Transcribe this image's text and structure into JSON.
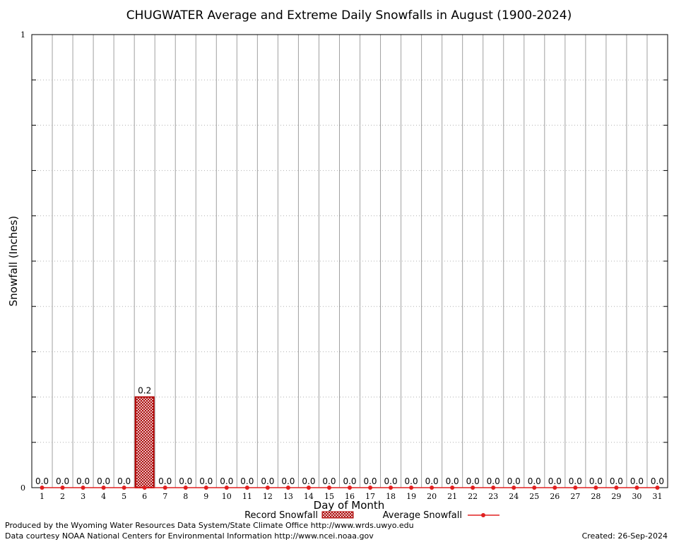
{
  "chart_data": {
    "type": "bar",
    "title": "CHUGWATER Average and Extreme Daily Snowfalls in August (1900-2024)",
    "xlabel": "Day of Month",
    "ylabel": "Snowfall (Inches)",
    "ylim": [
      0,
      1
    ],
    "yticks": [
      "0",
      "1"
    ],
    "grid": true,
    "categories": [
      "1",
      "2",
      "3",
      "4",
      "5",
      "6",
      "7",
      "8",
      "9",
      "10",
      "11",
      "12",
      "13",
      "14",
      "15",
      "16",
      "17",
      "18",
      "19",
      "20",
      "21",
      "22",
      "23",
      "24",
      "25",
      "26",
      "27",
      "28",
      "29",
      "30",
      "31"
    ],
    "series": [
      {
        "name": "Record Snowfall",
        "type": "bar",
        "values": [
          0,
          0,
          0,
          0,
          0,
          0.2,
          0,
          0,
          0,
          0,
          0,
          0,
          0,
          0,
          0,
          0,
          0,
          0,
          0,
          0,
          0,
          0,
          0,
          0,
          0,
          0,
          0,
          0,
          0,
          0,
          0
        ],
        "labels": [
          "0.0",
          "0.0",
          "0.0",
          "0.0",
          "0.0",
          "0.2",
          "0.0",
          "0.0",
          "0.0",
          "0.0",
          "0.0",
          "0.0",
          "0.0",
          "0.0",
          "0.0",
          "0.0",
          "0.0",
          "0.0",
          "0.0",
          "0.0",
          "0.0",
          "0.0",
          "0.0",
          "0.0",
          "0.0",
          "0.0",
          "0.0",
          "0.0",
          "0.0",
          "0.0",
          "0.0"
        ]
      },
      {
        "name": "Average Snowfall",
        "type": "line",
        "values": [
          0,
          0,
          0,
          0,
          0,
          0,
          0,
          0,
          0,
          0,
          0,
          0,
          0,
          0,
          0,
          0,
          0,
          0,
          0,
          0,
          0,
          0,
          0,
          0,
          0,
          0,
          0,
          0,
          0,
          0,
          0
        ]
      }
    ],
    "colors": {
      "record_fill": "#a80000",
      "record_border": "#b00000",
      "average_line": "#e02020",
      "grid": "#a0a0a0"
    },
    "legend_position": "bottom"
  },
  "footer": {
    "produced_by": "Produced by the Wyoming Water Resources Data System/State Climate Office http://www.wrds.uwyo.edu",
    "data_courtesy": "Data courtesy NOAA National Centers for Environmental Information http://www.ncei.noaa.gov",
    "created": "Created: 26-Sep-2024"
  }
}
